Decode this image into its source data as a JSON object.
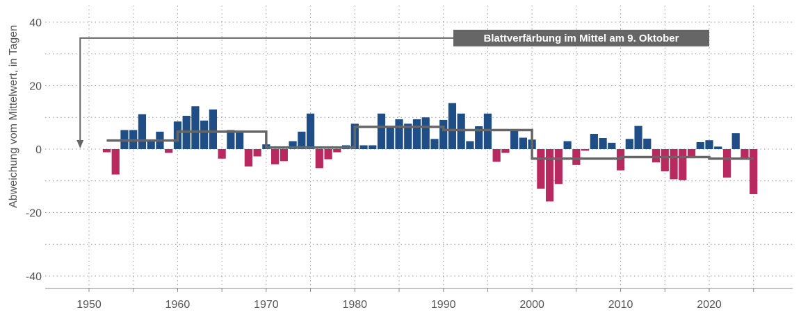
{
  "chart_data": {
    "type": "bar",
    "ylabel": "Abweichung vom Mittelwert, in Tagen",
    "xlabel": "",
    "ylim": [
      -42,
      40
    ],
    "xlim": [
      1945,
      2029
    ],
    "yticks": [
      -40,
      -20,
      0,
      20,
      40
    ],
    "xticks": [
      1950,
      1960,
      1970,
      1980,
      1990,
      2000,
      2010,
      2020
    ],
    "colors": {
      "positive": "#1f4e87",
      "negative": "#b8295f",
      "mean_line": "#666666",
      "grid": "#999999",
      "axis": "#888888"
    },
    "annotation": {
      "text": "Blattverfärbung im Mittel am 9. Oktober",
      "arrow_to_x": 1949,
      "arrow_to_y": 0,
      "y": 35
    },
    "years": [
      1952,
      1953,
      1954,
      1955,
      1956,
      1957,
      1958,
      1959,
      1960,
      1961,
      1962,
      1963,
      1964,
      1965,
      1966,
      1967,
      1968,
      1969,
      1970,
      1971,
      1972,
      1973,
      1974,
      1975,
      1976,
      1977,
      1978,
      1979,
      1980,
      1981,
      1982,
      1983,
      1984,
      1985,
      1986,
      1987,
      1988,
      1989,
      1990,
      1991,
      1992,
      1993,
      1994,
      1995,
      1996,
      1997,
      1998,
      1999,
      2000,
      2001,
      2002,
      2003,
      2004,
      2005,
      2006,
      2007,
      2008,
      2009,
      2010,
      2011,
      2012,
      2013,
      2014,
      2015,
      2016,
      2017,
      2018,
      2019,
      2020,
      2021,
      2022,
      2023,
      2024,
      2025
    ],
    "values": [
      -1,
      -8,
      6,
      6,
      11,
      3,
      5.5,
      -1.2,
      8.7,
      10.5,
      13.5,
      9,
      12.5,
      -3,
      6,
      5.2,
      -5.5,
      -2.3,
      1.5,
      -4.8,
      -3.8,
      2.5,
      5.5,
      11.2,
      -6,
      -3.2,
      -1,
      1.2,
      8,
      1.2,
      1.2,
      11.2,
      7,
      9.4,
      8,
      9.4,
      10,
      3.2,
      9.2,
      14.5,
      11.2,
      2.5,
      7.2,
      11.2,
      -4,
      -1.2,
      6,
      3.6,
      3,
      -12.5,
      -16.5,
      -11,
      2.5,
      -5,
      -0.5,
      4.8,
      3.5,
      2,
      -6.7,
      3.2,
      7.3,
      3.3,
      -4.2,
      -7,
      -9.5,
      -9.8,
      -2.5,
      2.2,
      2.8,
      0.8,
      -9,
      5,
      -2.8,
      -14.2
    ],
    "mean_segments": [
      {
        "x0": 1952,
        "x1": 1960,
        "y": 2.7
      },
      {
        "x0": 1960,
        "x1": 1970,
        "y": 5.5
      },
      {
        "x0": 1970,
        "x1": 1980,
        "y": 0.5
      },
      {
        "x0": 1980,
        "x1": 1990,
        "y": 7
      },
      {
        "x0": 1990,
        "x1": 2000,
        "y": 6
      },
      {
        "x0": 2000,
        "x1": 2010,
        "y": -3
      },
      {
        "x0": 2010,
        "x1": 2020,
        "y": -2.5
      },
      {
        "x0": 2020,
        "x1": 2025,
        "y": -3
      }
    ]
  }
}
